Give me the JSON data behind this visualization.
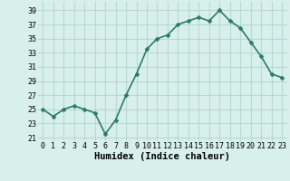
{
  "x": [
    0,
    1,
    2,
    3,
    4,
    5,
    6,
    7,
    8,
    9,
    10,
    11,
    12,
    13,
    14,
    15,
    16,
    17,
    18,
    19,
    20,
    21,
    22,
    23
  ],
  "y": [
    25,
    24,
    25,
    25.5,
    25,
    24.5,
    21.5,
    23.5,
    27,
    30,
    33.5,
    35,
    35.5,
    37,
    37.5,
    38,
    37.5,
    39,
    37.5,
    36.5,
    34.5,
    32.5,
    30,
    29.5
  ],
  "line_color": "#2d7a6a",
  "marker_color": "#2d7a6a",
  "bg_color": "#d8f0ec",
  "grid_color": "#b8d8d2",
  "xlabel": "Humidex (Indice chaleur)",
  "yticks": [
    21,
    23,
    25,
    27,
    29,
    31,
    33,
    35,
    37,
    39
  ],
  "xticks": [
    0,
    1,
    2,
    3,
    4,
    5,
    6,
    7,
    8,
    9,
    10,
    11,
    12,
    13,
    14,
    15,
    16,
    17,
    18,
    19,
    20,
    21,
    22,
    23
  ],
  "xlim": [
    -0.5,
    23.5
  ],
  "ylim": [
    20.5,
    40.2
  ],
  "xlabel_fontsize": 7.5,
  "tick_fontsize": 6,
  "line_width": 1.2,
  "marker_size": 2.5
}
